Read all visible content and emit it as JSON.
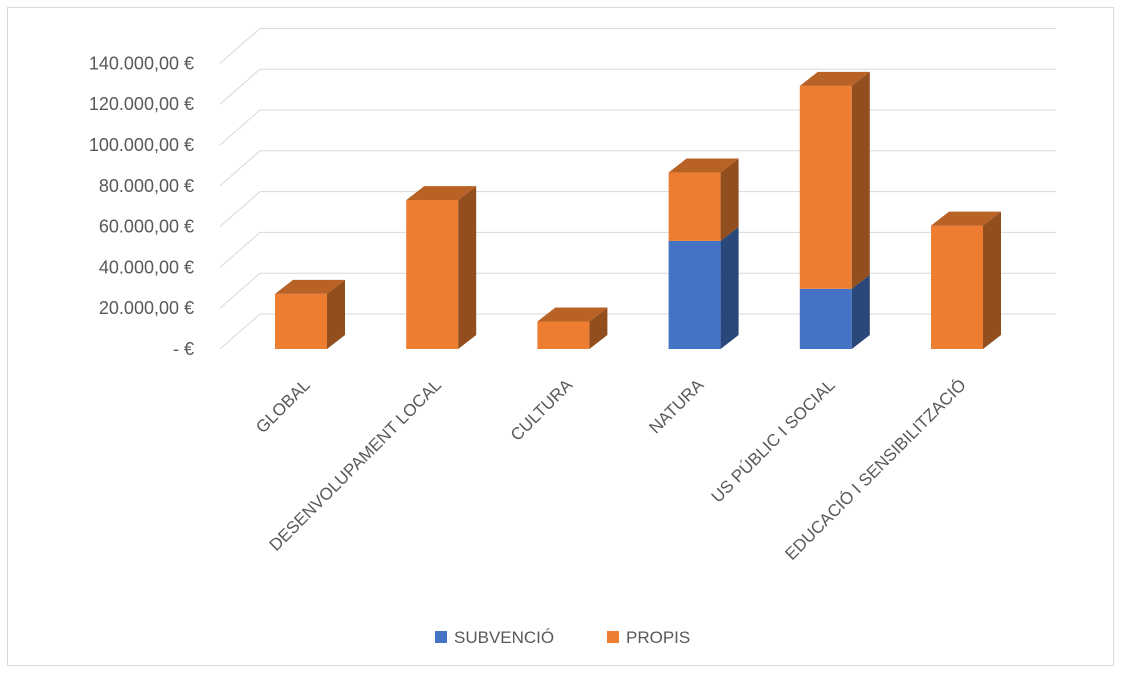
{
  "chart_data": {
    "type": "bar",
    "stacked": true,
    "style": "3d-column",
    "title": "",
    "xlabel": "",
    "ylabel": "",
    "ylim": [
      0,
      140000
    ],
    "yticks": [
      0,
      20000,
      40000,
      60000,
      80000,
      100000,
      120000,
      140000
    ],
    "ytick_labels": [
      "-  €",
      "20.000,00 €",
      "40.000,00 €",
      "60.000,00 €",
      "80.000,00 €",
      "100.000,00 €",
      "120.000,00 €",
      "140.000,00 €"
    ],
    "categories": [
      "GLOBAL",
      "DESENVOLUPAMENT LOCAL",
      "CULTURA",
      "NATURA",
      "US PÚBLIC I SOCIAL",
      "EDUCACIÓ I SENSIBILITZACIÓ"
    ],
    "series": [
      {
        "name": "SUBVENCIÓ",
        "color": "#4472c4",
        "values": [
          0,
          0,
          0,
          53000,
          29500,
          0
        ]
      },
      {
        "name": "PROPIS",
        "color": "#ed7d31",
        "values": [
          27000,
          73000,
          13500,
          33500,
          99500,
          60500
        ]
      }
    ],
    "grid": true,
    "legend": "bottom"
  }
}
